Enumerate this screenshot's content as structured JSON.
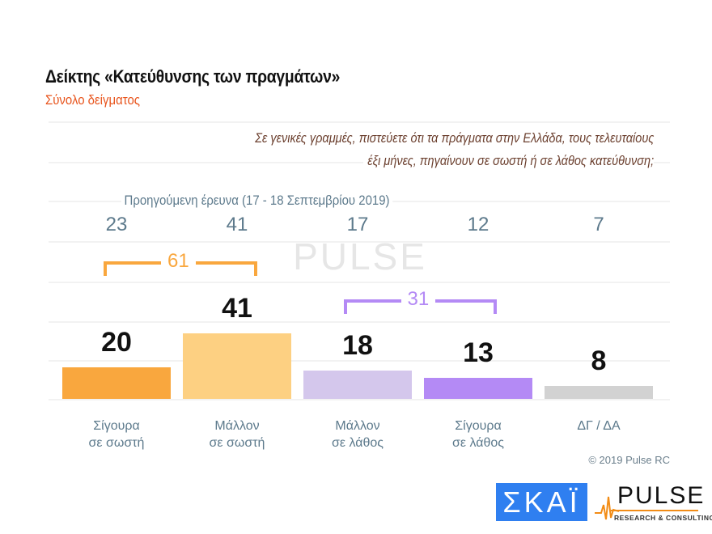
{
  "header": {
    "title": "Δείκτης «Κατεύθυνσης των πραγμάτων»",
    "subtitle": "Σύνολο δείγματος"
  },
  "question": {
    "line1": "Σε γενικές γραμμές, πιστεύετε ότι τα πράγματα στην Ελλάδα, τους τελευταίους",
    "line2": "έξι μήνες, πηγαίνουν σε σωστή ή σε λάθος κατεύθυνση;"
  },
  "chart_data": {
    "type": "bar",
    "categories": [
      "Σίγουρα σε σωστή",
      "Μάλλον σε σωστή",
      "Μάλλον σε λάθος",
      "Σίγουρα σε λάθος",
      "ΔΓ / ΔΑ"
    ],
    "category_lines": [
      [
        "Σίγουρα",
        "σε σωστή"
      ],
      [
        "Μάλλον",
        "σε σωστή"
      ],
      [
        "Μάλλον",
        "σε λάθος"
      ],
      [
        "Σίγουρα",
        "σε λάθος"
      ],
      [
        "ΔΓ / ΔΑ",
        ""
      ]
    ],
    "values": [
      20,
      41,
      18,
      13,
      8
    ],
    "colors": [
      "#f9a73e",
      "#fdd082",
      "#d4c7ec",
      "#b48af5",
      "#d2d2d2"
    ],
    "previous": {
      "label": "Προηγούμενη έρευνα  (17 - 18  Σεπτεμβρίου  2019)",
      "values": [
        23,
        41,
        17,
        12,
        7
      ]
    },
    "groups": [
      {
        "label": "61",
        "color": "#f9a73e"
      },
      {
        "label": "31",
        "color": "#b48af5"
      }
    ],
    "ylim": [
      0,
      50
    ],
    "grid": false
  },
  "footer": {
    "copyright": "© 2019 Pulse RC",
    "skai_logo": "ΣΚΑΪ",
    "pulse_logo": "PULSE",
    "pulse_tagline": "RESEARCH & CONSULTING"
  }
}
